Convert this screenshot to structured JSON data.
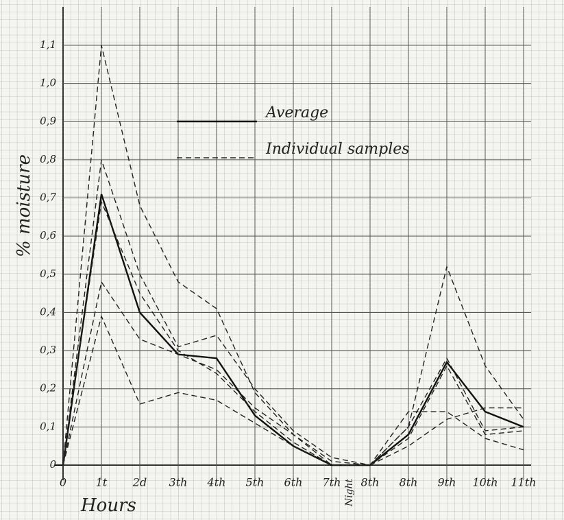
{
  "chart_data": {
    "type": "line",
    "x_label": "Hours",
    "y_label": "% moisture",
    "annotation": "Night",
    "categories": [
      "0",
      "1t",
      "2d",
      "3th",
      "4th",
      "5th",
      "6th",
      "7th",
      "8th",
      "8th",
      "9th",
      "10th",
      "11th"
    ],
    "series": [
      {
        "name": "Average",
        "color": "#111111",
        "dashed": false,
        "values": [
          0,
          0.71,
          0.4,
          0.29,
          0.28,
          0.13,
          0.05,
          0,
          0,
          0.08,
          0.27,
          0.14,
          0.1
        ]
      },
      {
        "name": "Individual samples",
        "color": "#222222",
        "dashed": true,
        "values": [
          0,
          1.1,
          0.68,
          0.48,
          0.41,
          0.19,
          0.08,
          0.01,
          0,
          0.1,
          0.52,
          0.26,
          0.12
        ]
      },
      {
        "color": "#222222",
        "dashed": true,
        "values": [
          0,
          0.8,
          0.5,
          0.31,
          0.34,
          0.2,
          0.09,
          0.02,
          0,
          0.1,
          0.28,
          0.09,
          0.1
        ]
      },
      {
        "color": "#222222",
        "dashed": true,
        "values": [
          0,
          0.48,
          0.33,
          0.29,
          0.25,
          0.15,
          0.08,
          0,
          0,
          0.14,
          0.14,
          0.07,
          0.04
        ]
      },
      {
        "color": "#222222",
        "dashed": true,
        "values": [
          0,
          0.39,
          0.16,
          0.19,
          0.17,
          0.11,
          0.05,
          0,
          0,
          0.05,
          0.12,
          0.15,
          0.15
        ]
      },
      {
        "color": "#222222",
        "dashed": true,
        "values": [
          0.01,
          0.69,
          0.45,
          0.3,
          0.24,
          0.14,
          0.06,
          0,
          0,
          0.07,
          0.26,
          0.08,
          0.09
        ]
      }
    ],
    "ylim": [
      0,
      1.1
    ],
    "yticks": [
      0,
      {
        "value": 0.1,
        "label": "0,1"
      },
      {
        "value": 0.2,
        "label": "0,2"
      },
      {
        "value": 0.3,
        "label": "0,3"
      },
      {
        "value": 0.4,
        "label": "0,4"
      },
      {
        "value": 0.5,
        "label": "0,5"
      },
      {
        "value": 0.6,
        "label": "0,6"
      },
      {
        "value": 0.7,
        "label": "0,7"
      },
      {
        "value": 0.8,
        "label": "0,8"
      },
      {
        "value": 0.9,
        "label": "0,9"
      },
      {
        "value": 1.0,
        "label": "1,0"
      },
      {
        "value": 1.1,
        "label": "1,1"
      }
    ],
    "grid": true
  }
}
